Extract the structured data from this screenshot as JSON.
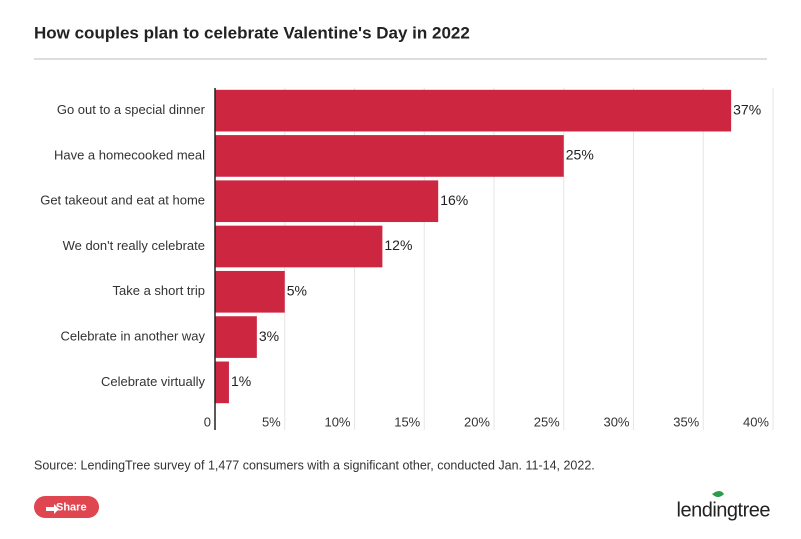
{
  "chart_data": {
    "type": "hbar",
    "title": "How couples plan to celebrate Valentine's Day in 2022",
    "categories": [
      "Go out to a special dinner",
      "Have a homecooked meal",
      "Get takeout and eat at home",
      "We don't really celebrate",
      "Take a short trip",
      "Celebrate in another way",
      "Celebrate virtually"
    ],
    "values": [
      37,
      25,
      16,
      12,
      5,
      3,
      1
    ],
    "value_labels": [
      "37%",
      "25%",
      "16%",
      "12%",
      "5%",
      "3%",
      "1%"
    ],
    "color": "#cc2640",
    "xlim": [
      0,
      40
    ],
    "xticks": [
      0,
      {
        "value": 5,
        "label": "5%"
      },
      {
        "value": 10,
        "label": "10%"
      },
      {
        "value": 15,
        "label": "15%"
      },
      {
        "value": 20,
        "label": "20%"
      },
      {
        "value": 25,
        "label": "25%"
      },
      {
        "value": 30,
        "label": "30%"
      },
      {
        "value": 35,
        "label": "35%"
      },
      {
        "value": 40,
        "label": "40%"
      }
    ],
    "grid": true,
    "source": "Source: LendingTree survey of 1,477 consumers with a significant other, conducted Jan. 11-14, 2022."
  },
  "share_button": "Share",
  "logo": "lendingtree"
}
